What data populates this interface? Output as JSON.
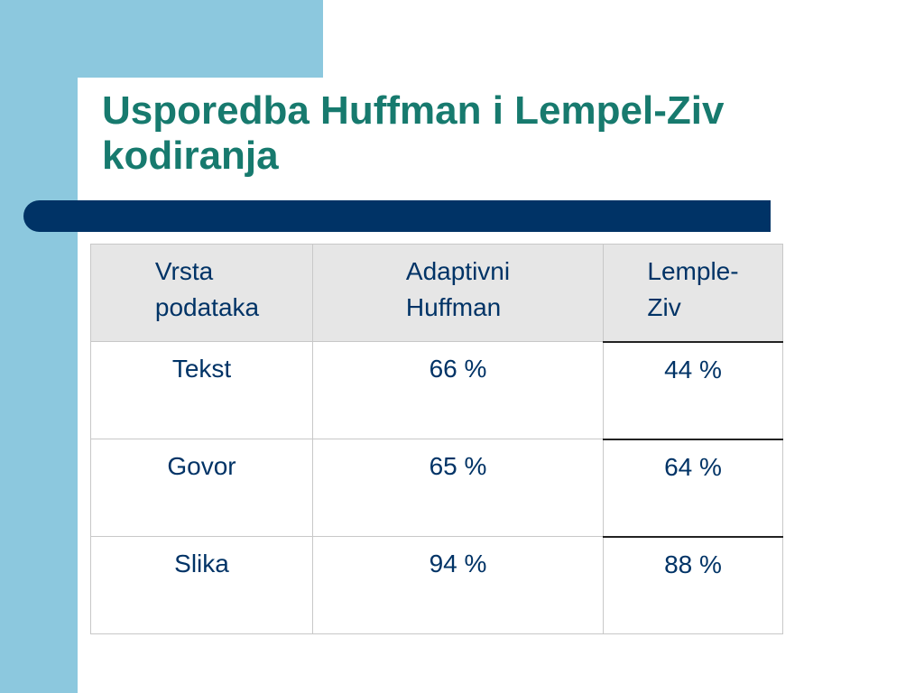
{
  "slide": {
    "title": "Usporedba Huffman i Lempel-Ziv kodiranja",
    "colors": {
      "title": "#177a6e",
      "accent_frame": "#8cc8de",
      "rule_bar": "#003366",
      "table_text": "#003366",
      "header_background": "#e6e6e6"
    }
  },
  "table": {
    "headers": [
      "Vrsta\npodataka",
      "Adaptivni\n  Huffman",
      "Lemple-\n  Ziv"
    ],
    "rows": [
      [
        "Tekst",
        "66 %",
        "44 %"
      ],
      [
        "Govor",
        "65 %",
        "64 %"
      ],
      [
        "Slika",
        "94 %",
        "88 %"
      ]
    ]
  }
}
